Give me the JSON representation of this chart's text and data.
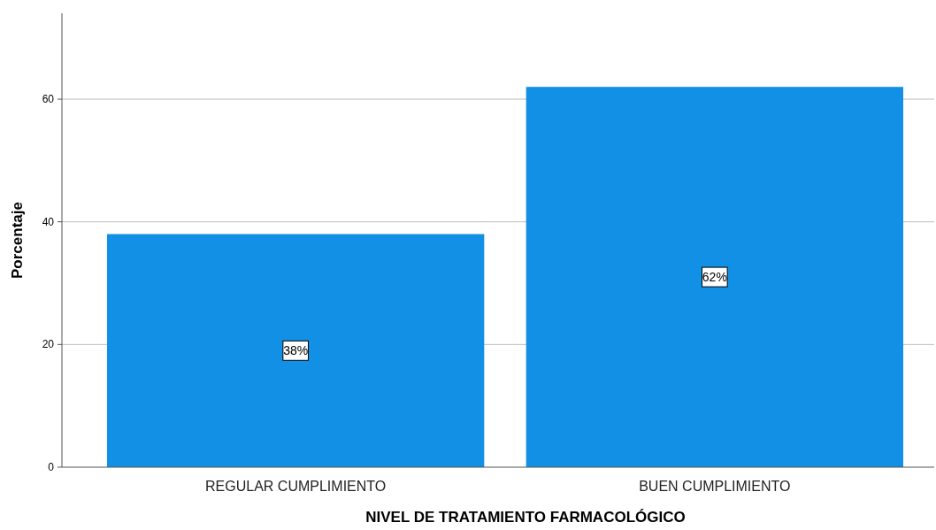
{
  "chart_data": {
    "type": "bar",
    "xlabel": "NIVEL DE TRATAMIENTO FARMACOLÓGICO",
    "ylabel": "Porcentaje",
    "categories": [
      "REGULAR CUMPLIMIENTO",
      "BUEN CUMPLIMIENTO"
    ],
    "values": [
      38,
      62
    ],
    "value_labels": [
      "38%",
      "62%"
    ],
    "color": "#1190e6",
    "ylim": [
      0,
      74
    ],
    "yticks": [
      0,
      20,
      40,
      60
    ],
    "grid": "y"
  }
}
